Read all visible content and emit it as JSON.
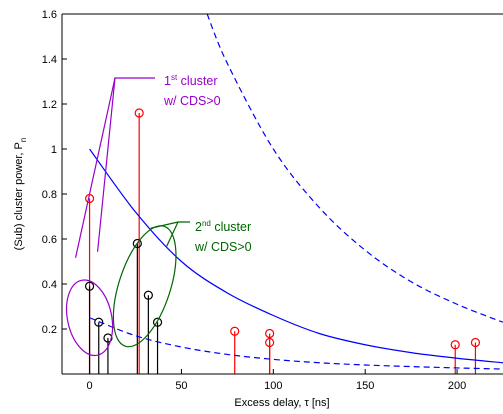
{
  "chart_data": {
    "type": "stem",
    "xlabel": "Excess delay, τ [ns]",
    "ylabel": "(Sub) cluster power, P",
    "ylabel_subscript": "n",
    "xlim": [
      -15,
      225
    ],
    "ylim": [
      0,
      1.6
    ],
    "xticks": [
      0,
      50,
      100,
      150,
      200
    ],
    "yticks": [
      0.2,
      0.4,
      0.6,
      0.8,
      1.0,
      1.2,
      1.4,
      1.6
    ],
    "ytick_labels": [
      "0.2",
      "0.4",
      "0.6",
      "0.8",
      "1",
      "1.2",
      "1.4",
      "1.6"
    ],
    "series": [
      {
        "style": "red stems with circle markers",
        "color": "#ff0000",
        "points": [
          {
            "x": 0,
            "y": 0.78
          },
          {
            "x": 27,
            "y": 1.16
          },
          {
            "x": 79,
            "y": 0.19
          },
          {
            "x": 98,
            "y": 0.18
          },
          {
            "x": 98,
            "y": 0.14
          },
          {
            "x": 199,
            "y": 0.13
          },
          {
            "x": 210,
            "y": 0.14
          }
        ]
      },
      {
        "style": "black stems with circle markers",
        "color": "#000000",
        "points": [
          {
            "x": 0,
            "y": 0.39
          },
          {
            "x": 5,
            "y": 0.23
          },
          {
            "x": 10,
            "y": 0.16
          },
          {
            "x": 26,
            "y": 0.58
          },
          {
            "x": 32,
            "y": 0.35
          },
          {
            "x": 37,
            "y": 0.23
          }
        ]
      },
      {
        "style": "blue solid curve",
        "color": "#0000ff",
        "points": [
          {
            "x": 0,
            "y": 1.0
          },
          {
            "x": 25,
            "y": 0.72
          },
          {
            "x": 50,
            "y": 0.5
          },
          {
            "x": 75,
            "y": 0.36
          },
          {
            "x": 100,
            "y": 0.26
          },
          {
            "x": 125,
            "y": 0.18
          },
          {
            "x": 150,
            "y": 0.13
          },
          {
            "x": 175,
            "y": 0.095
          },
          {
            "x": 200,
            "y": 0.07
          },
          {
            "x": 225,
            "y": 0.05
          }
        ]
      },
      {
        "style": "blue dashed upper curve",
        "color": "#0000ff",
        "points": [
          {
            "x": 64,
            "y": 1.6
          },
          {
            "x": 75,
            "y": 1.38
          },
          {
            "x": 100,
            "y": 1.0
          },
          {
            "x": 125,
            "y": 0.74
          },
          {
            "x": 150,
            "y": 0.55
          },
          {
            "x": 175,
            "y": 0.41
          },
          {
            "x": 200,
            "y": 0.31
          },
          {
            "x": 225,
            "y": 0.23
          }
        ]
      },
      {
        "style": "blue dashed lower curve",
        "color": "#0000ff",
        "points": [
          {
            "x": 0,
            "y": 0.25
          },
          {
            "x": 25,
            "y": 0.17
          },
          {
            "x": 50,
            "y": 0.12
          },
          {
            "x": 75,
            "y": 0.087
          },
          {
            "x": 100,
            "y": 0.065
          },
          {
            "x": 125,
            "y": 0.05
          },
          {
            "x": 150,
            "y": 0.04
          },
          {
            "x": 175,
            "y": 0.033
          },
          {
            "x": 200,
            "y": 0.027
          },
          {
            "x": 225,
            "y": 0.022
          }
        ]
      }
    ],
    "annotations": [
      {
        "ordinal": "1",
        "superscript": "st",
        "text": "cluster",
        "line2": "w/ CDS>0",
        "color": "#9900cc",
        "target_x": 0,
        "target_y": 0.25,
        "ellipse_rx": 12,
        "ellipse_ry": 0.17
      },
      {
        "ordinal": "2",
        "superscript": "nd",
        "text": "cluster",
        "line2": "w/ CDS>0",
        "color": "#006600",
        "target_x": 30,
        "target_y": 0.39,
        "ellipse_rx": 14,
        "ellipse_ry": 0.28
      }
    ]
  }
}
